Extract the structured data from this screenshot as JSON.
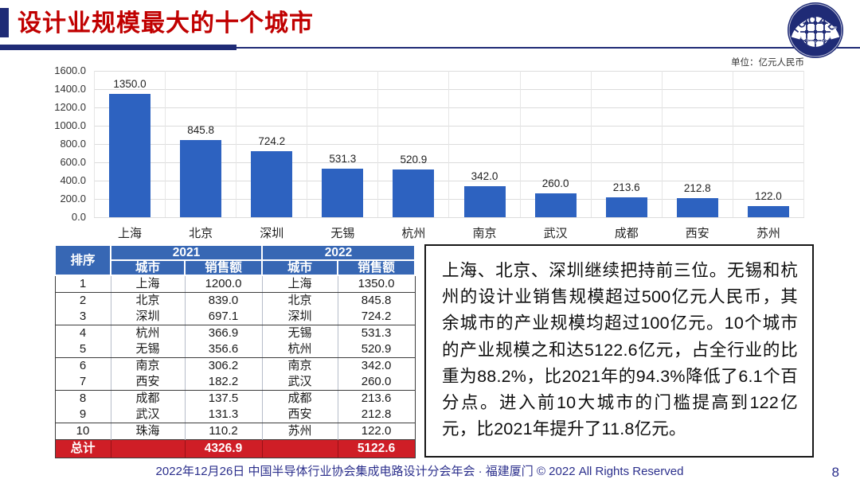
{
  "title": "设计业规模最大的十个城市",
  "logo": {
    "name": "ICCAD",
    "ring_text": "中国半导体行业协会集成电路设计分会"
  },
  "chart_data": {
    "type": "bar",
    "title": "",
    "unit_label": "单位：亿元人民币",
    "categories": [
      "上海",
      "北京",
      "深圳",
      "无锡",
      "杭州",
      "南京",
      "武汉",
      "成都",
      "西安",
      "苏州"
    ],
    "values": [
      1350.0,
      845.8,
      724.2,
      531.3,
      520.9,
      342.0,
      260.0,
      213.6,
      212.8,
      122.0
    ],
    "xlabel": "",
    "ylabel": "",
    "ylim": [
      0,
      1600
    ],
    "ytick_step": 200,
    "grid": true,
    "legend": false
  },
  "table": {
    "header": {
      "rank": "排序",
      "year_2021": "2021",
      "year_2022": "2022",
      "city": "城市",
      "sales": "销售额"
    },
    "rows": [
      {
        "rank": "1",
        "city_2021": "上海",
        "sales_2021": "1200.0",
        "city_2022": "上海",
        "sales_2022": "1350.0"
      },
      {
        "rank": "2",
        "city_2021": "北京",
        "sales_2021": "839.0",
        "city_2022": "北京",
        "sales_2022": "845.8"
      },
      {
        "rank": "3",
        "city_2021": "深圳",
        "sales_2021": "697.1",
        "city_2022": "深圳",
        "sales_2022": "724.2"
      },
      {
        "rank": "4",
        "city_2021": "杭州",
        "sales_2021": "366.9",
        "city_2022": "无锡",
        "sales_2022": "531.3"
      },
      {
        "rank": "5",
        "city_2021": "无锡",
        "sales_2021": "356.6",
        "city_2022": "杭州",
        "sales_2022": "520.9"
      },
      {
        "rank": "6",
        "city_2021": "南京",
        "sales_2021": "306.2",
        "city_2022": "南京",
        "sales_2022": "342.0"
      },
      {
        "rank": "7",
        "city_2021": "西安",
        "sales_2021": "182.2",
        "city_2022": "武汉",
        "sales_2022": "260.0"
      },
      {
        "rank": "8",
        "city_2021": "成都",
        "sales_2021": "137.5",
        "city_2022": "成都",
        "sales_2022": "213.6"
      },
      {
        "rank": "9",
        "city_2021": "武汉",
        "sales_2021": "131.3",
        "city_2022": "西安",
        "sales_2022": "212.8"
      },
      {
        "rank": "10",
        "city_2021": "珠海",
        "sales_2021": "110.2",
        "city_2022": "苏州",
        "sales_2022": "122.0"
      }
    ],
    "total": {
      "label": "总计",
      "sales_2021": "4326.9",
      "sales_2022": "5122.6"
    }
  },
  "note": {
    "text": "上海、北京、深圳继续把持前三位。无锡和杭州的设计业销售规模超过500亿元人民币，其余城市的产业规模均超过100亿元。10个城市的产业规模之和达5122.6亿元，占全行业的比重为88.2%，比2021年的94.3%降低了6.1个百分点。进入前10大城市的门槛提高到122亿元，比2021年提升了11.8亿元。"
  },
  "footer": {
    "text": "2022年12月26日 中国半导体行业协会集成电路设计分会年会 · 福建厦门 © 2022 All Rights Reserved",
    "page": "8"
  },
  "colors": {
    "titleRed": "#C00000",
    "navy": "#1F2B76",
    "barBlue": "#2D62C0",
    "tableHeaderBlue": "#3767B4",
    "totalRed": "#CF1E26",
    "footerNavy": "#2B2F8C",
    "gridline": "#dcdcdc"
  }
}
